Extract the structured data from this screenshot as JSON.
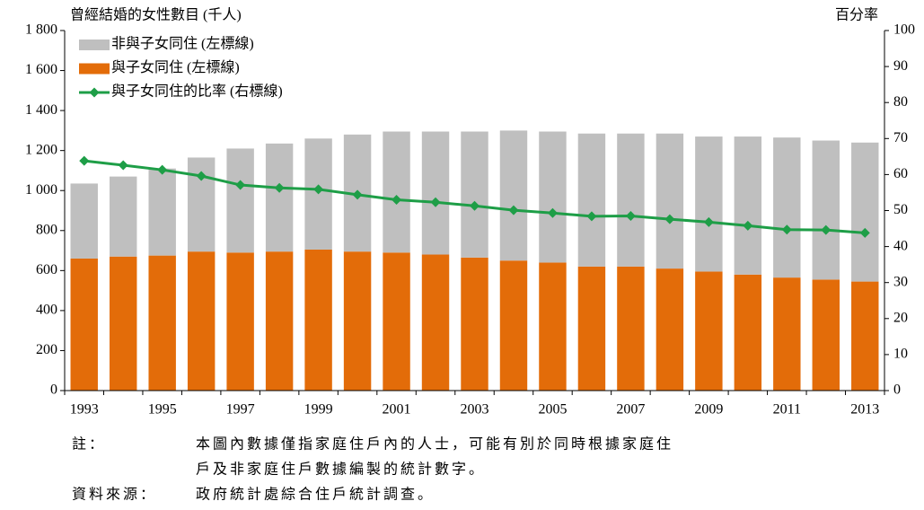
{
  "chart_data": {
    "type": "bar",
    "y_label": "曾經結婚的女性數目 (千人)",
    "y2_label": "百分率",
    "categories": [
      "1993",
      null,
      "1995",
      null,
      "1997",
      null,
      "1999",
      null,
      "2001",
      null,
      "2003",
      null,
      "2005",
      null,
      "2007",
      null,
      "2009",
      null,
      "2011",
      null,
      "2013"
    ],
    "stacked": true,
    "legend": "upper left",
    "series": [
      {
        "name": "與子女同住 (左標線)",
        "color": "#e36c09",
        "values": [
          660,
          670,
          675,
          695,
          690,
          695,
          705,
          695,
          690,
          680,
          665,
          650,
          640,
          620,
          620,
          610,
          595,
          580,
          565,
          555,
          545
        ]
      },
      {
        "name": "非與子女同住 (左標線)",
        "color": "#bfbfbf",
        "values": [
          375,
          400,
          435,
          470,
          520,
          540,
          555,
          585,
          605,
          615,
          630,
          650,
          655,
          665,
          665,
          675,
          675,
          690,
          700,
          695,
          695
        ]
      },
      {
        "name": "與子女同住的比率 (右標線)",
        "color": "#1e9e47",
        "type": "line",
        "axis": "y2",
        "values": [
          63.8,
          62.6,
          61.3,
          59.6,
          57.1,
          56.3,
          55.9,
          54.4,
          53.0,
          52.3,
          51.3,
          50.1,
          49.3,
          48.4,
          48.5,
          47.6,
          46.8,
          45.8,
          44.7,
          44.6,
          43.8
        ]
      }
    ],
    "ylim": [
      0,
      1800
    ],
    "yticks": [
      0,
      200,
      400,
      600,
      800,
      {
        "value": 1000,
        "label": "1 000"
      },
      {
        "value": 1200,
        "label": "1 200"
      },
      {
        "value": 1400,
        "label": "1 400"
      },
      {
        "value": 1600,
        "label": "1 600"
      },
      {
        "value": 1800,
        "label": "1 800"
      }
    ],
    "y2lim": [
      0,
      100
    ],
    "y2ticks": [
      0,
      10,
      20,
      30,
      40,
      50,
      60,
      70,
      80,
      90,
      100
    ]
  },
  "notes": {
    "label": "註：",
    "lines": [
      "本圖內數據僅指家庭住戶內的人士，可能有別於同時根據家庭住",
      "戶及非家庭住戶數據編製的統計數字。"
    ]
  },
  "source": {
    "label": "資料來源：",
    "text": "政府統計處綜合住戶統計調查。"
  }
}
